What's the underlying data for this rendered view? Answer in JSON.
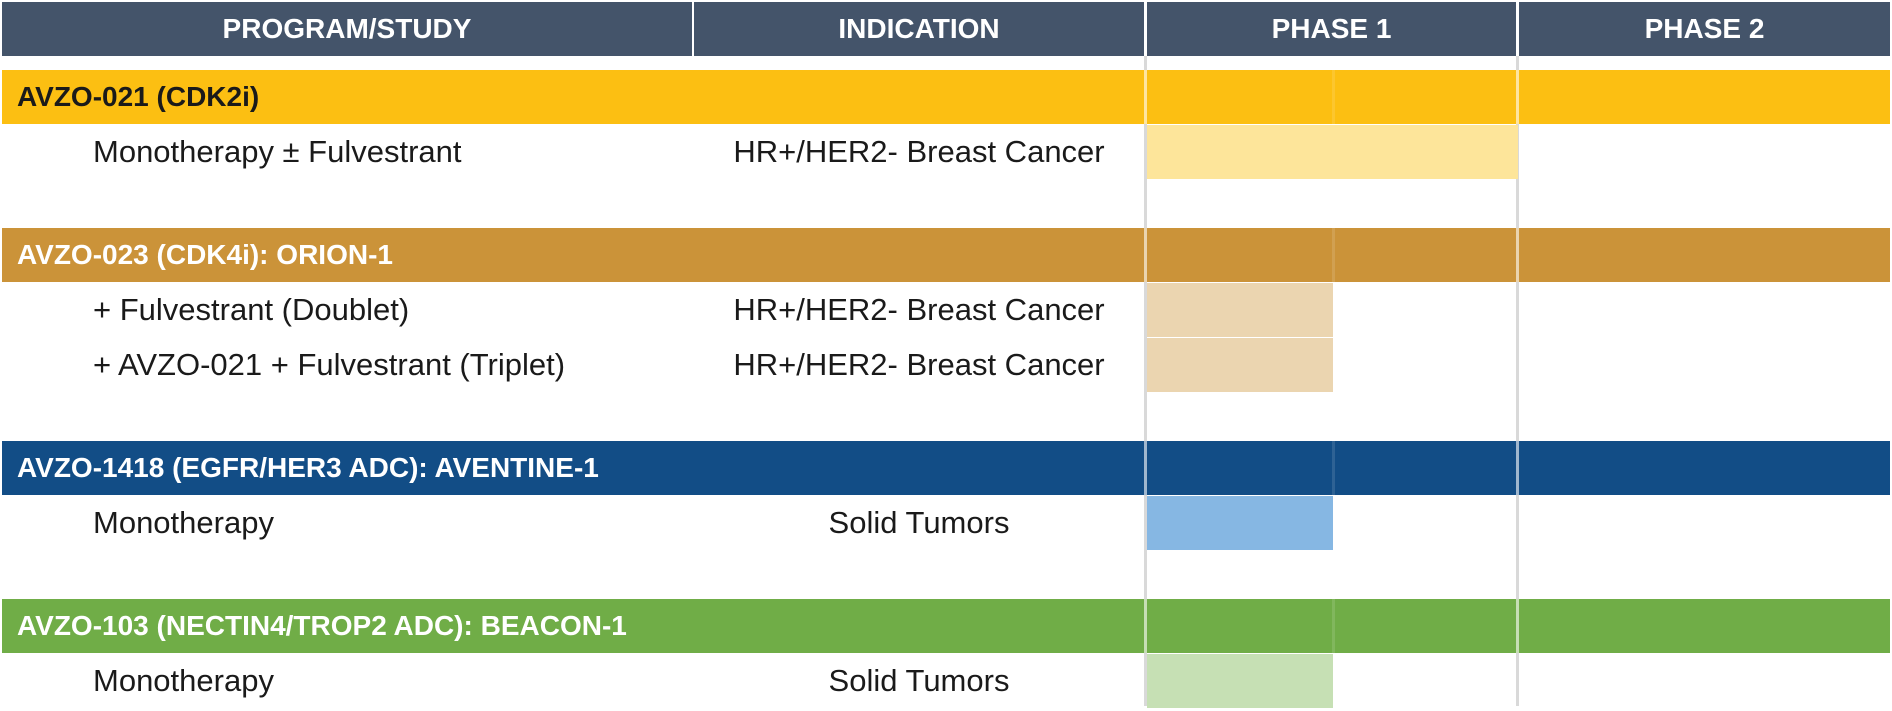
{
  "headers": {
    "program": "PROGRAM/STUDY",
    "indication": "INDICATION",
    "phase1": "PHASE 1",
    "phase2": "PHASE 2"
  },
  "colors": {
    "header": "#44546a",
    "grid": "#d9d9d9"
  },
  "chart_data": {
    "type": "bar",
    "phases": [
      "PHASE 1",
      "PHASE 2"
    ],
    "programs": [
      {
        "name": "AVZO-021 (CDK2i)",
        "band_color": "#fcbf12",
        "text_color": "#1a1a1a",
        "studies": [
          {
            "study": "Monotherapy ± Fulvestrant",
            "indication": "HR+/HER2- Breast Cancer",
            "progress": 1.0,
            "bar_color": "#fde59a"
          }
        ]
      },
      {
        "name": "AVZO-023 (CDK4i): ORION-1",
        "band_color": "#cb9339",
        "text_color": "#ffffff",
        "studies": [
          {
            "study": "+ Fulvestrant (Doublet)",
            "indication": "HR+/HER2- Breast Cancer",
            "progress": 0.5,
            "bar_color": "#ebd5b0"
          },
          {
            "study": "+ AVZO-021 + Fulvestrant (Triplet)",
            "indication": "HR+/HER2- Breast Cancer",
            "progress": 0.5,
            "bar_color": "#ebd5b0"
          }
        ]
      },
      {
        "name": "AVZO-1418 (EGFR/HER3 ADC): AVENTINE-1",
        "band_color": "#124d86",
        "text_color": "#ffffff",
        "studies": [
          {
            "study": "Monotherapy",
            "indication": "Solid Tumors",
            "progress": 0.5,
            "bar_color": "#86b7e3"
          }
        ]
      },
      {
        "name": "AVZO-103 (NECTIN4/TROP2 ADC): BEACON-1",
        "band_color": "#70ad47",
        "text_color": "#ffffff",
        "studies": [
          {
            "study": "Monotherapy",
            "indication": "Solid Tumors",
            "progress": 0.5,
            "bar_color": "#c6e0b4"
          }
        ]
      }
    ]
  }
}
